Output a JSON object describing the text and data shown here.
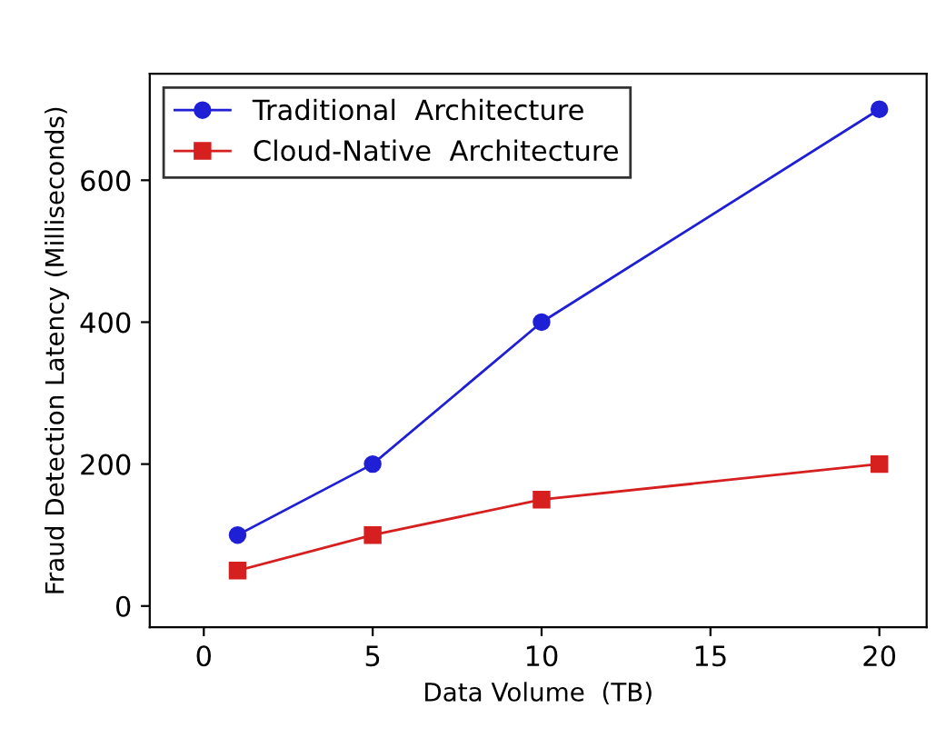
{
  "chart_data": {
    "type": "line",
    "xlabel": "Data Volume  (TB)",
    "ylabel": "Fraud Detection Latency (Milliseconds)",
    "x": [
      1,
      5,
      10,
      20
    ],
    "series": [
      {
        "name": "Traditional  Architecture",
        "color": "#1f1fd6",
        "values": [
          100,
          200,
          400,
          700
        ],
        "marker": "circle"
      },
      {
        "name": "Cloud-Native  Architecture",
        "color": "#d61f1f",
        "values": [
          50,
          100,
          150,
          200
        ],
        "marker": "square"
      }
    ],
    "xlim": [
      -1.6,
      21.4
    ],
    "ylim": [
      -30,
      750
    ],
    "xticks": [
      0,
      5,
      10,
      15,
      20
    ],
    "yticks": [
      0,
      200,
      400,
      600
    ],
    "legend": "top left",
    "grid": false
  }
}
